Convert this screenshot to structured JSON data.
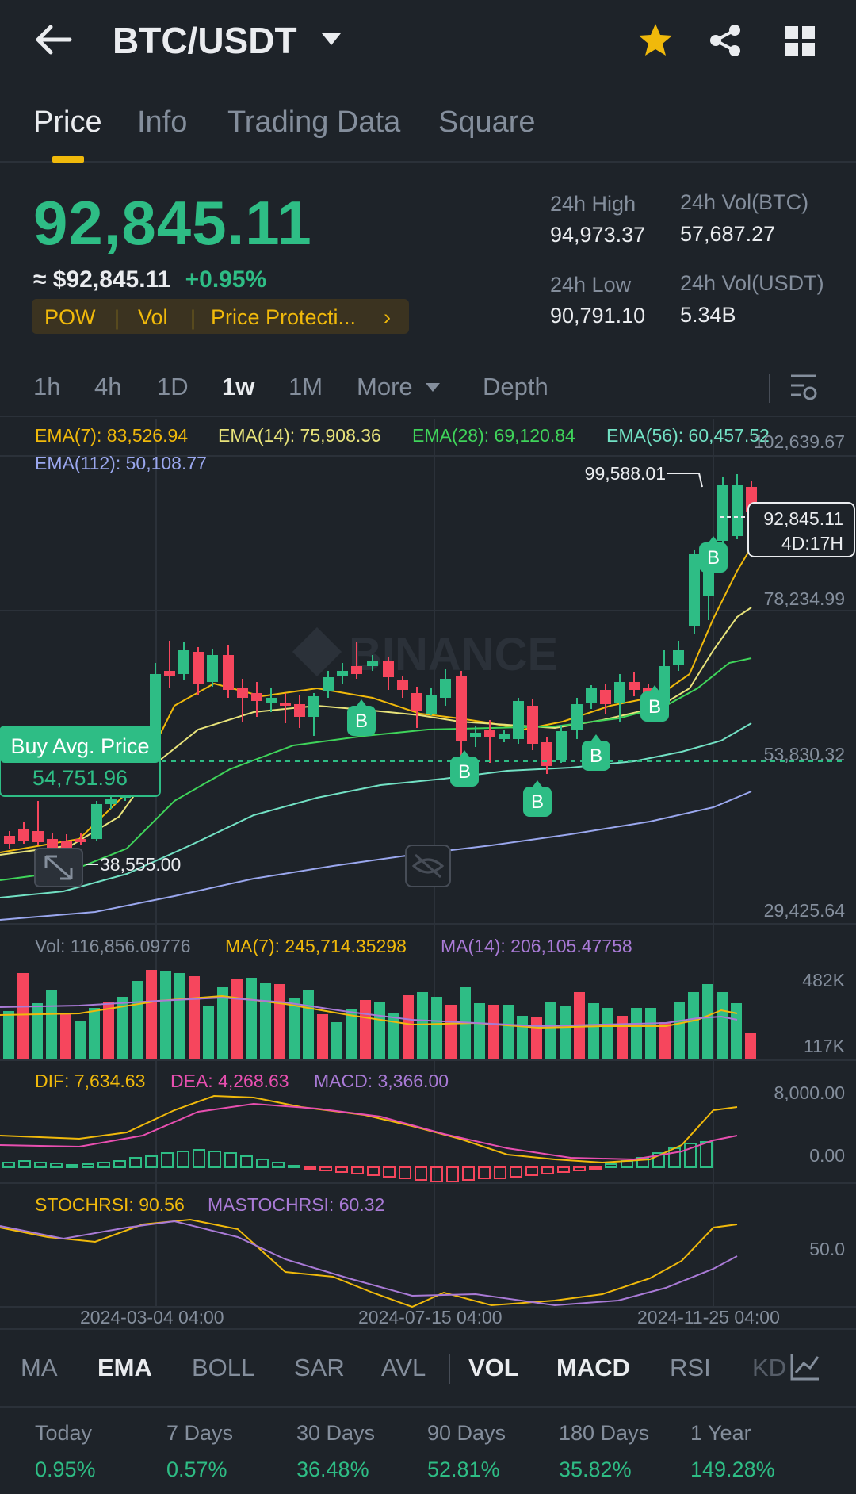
{
  "header": {
    "pair": "BTC/USDT"
  },
  "tabs": [
    "Price",
    "Info",
    "Trading Data",
    "Square"
  ],
  "ticker": {
    "last_price": "92,845.11",
    "usd_price": "≈ $92,845.11",
    "change": "+0.95%",
    "tags": [
      "POW",
      "Vol",
      "Price Protecti..."
    ],
    "high_label": "24h High",
    "high": "94,973.37",
    "low_label": "24h Low",
    "low": "90,791.10",
    "vol_btc_label": "24h Vol(BTC)",
    "vol_btc": "57,687.27",
    "vol_usdt_label": "24h Vol(USDT)",
    "vol_usdt": "5.34B"
  },
  "intervals": [
    "1h",
    "4h",
    "1D",
    "1w",
    "1M",
    "More",
    "Depth"
  ],
  "active_interval": "1w",
  "ema_legend": {
    "ema7": "EMA(7): 83,526.94",
    "ema14": "EMA(14): 75,908.36",
    "ema28": "EMA(28): 69,120.84",
    "ema56": "EMA(56): 60,457.52",
    "ema112": "EMA(112): 50,108.77"
  },
  "price_axis": [
    "102,639.67",
    "78,234.99",
    "53,830.32",
    "29,425.64"
  ],
  "markers": {
    "high_label": "99,588.01",
    "low_label": "38,555.00",
    "current_price": "92,845.11",
    "countdown": "4D:17H",
    "buy_avg_label": "Buy Avg. Price",
    "buy_avg_value": "54,751.96",
    "buy_marker": "B"
  },
  "watermark": "BINANCE",
  "vol_legend": {
    "vol": "Vol: 116,856.09776",
    "ma7": "MA(7): 245,714.35298",
    "ma14": "MA(14): 206,105.47758"
  },
  "vol_axis": [
    "482K",
    "117K"
  ],
  "macd_legend": {
    "dif": "DIF: 7,634.63",
    "dea": "DEA: 4,268.63",
    "macd": "MACD: 3,366.00"
  },
  "macd_axis": [
    "8,000.00",
    "0.00"
  ],
  "stoch_legend": {
    "stoch": "STOCHRSI: 90.56",
    "ma": "MASTOCHRSI: 60.32"
  },
  "stoch_axis": [
    "50.0"
  ],
  "time_axis": [
    "2024-03-04 04:00",
    "2024-07-15 04:00",
    "2024-11-25 04:00"
  ],
  "indicators": [
    "MA",
    "EMA",
    "BOLL",
    "SAR",
    "AVL",
    "VOL",
    "MACD",
    "RSI",
    "KD"
  ],
  "performance": [
    {
      "label": "Today",
      "value": "0.95%"
    },
    {
      "label": "7 Days",
      "value": "0.57%"
    },
    {
      "label": "30 Days",
      "value": "36.48%"
    },
    {
      "label": "90 Days",
      "value": "52.81%"
    },
    {
      "label": "180 Days",
      "value": "35.82%"
    },
    {
      "label": "1 Year",
      "value": "149.28%"
    }
  ],
  "colors": {
    "up": "#2ebd85",
    "down": "#f6465d",
    "accent": "#f0b90b",
    "bg": "#1e2329"
  }
}
